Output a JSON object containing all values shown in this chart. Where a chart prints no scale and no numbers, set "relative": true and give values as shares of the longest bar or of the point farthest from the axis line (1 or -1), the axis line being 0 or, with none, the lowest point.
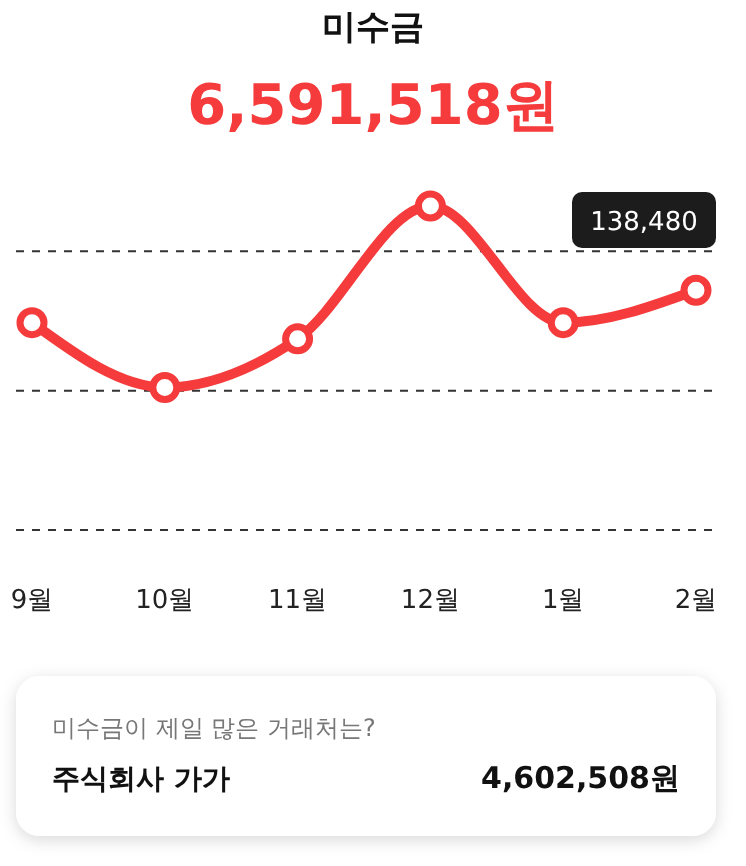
{
  "chart_data": {
    "type": "line",
    "title": "미수금",
    "subtitle": "6,591,518원",
    "categories": [
      "9월",
      "10월",
      "11월",
      "12월",
      "1월",
      "2월"
    ],
    "relative": true,
    "series": [
      {
        "color": "#f53b3b",
        "values": [
          0.64,
          0.44,
          0.59,
          1,
          0.64,
          0.74
        ]
      }
    ],
    "marker": "circle",
    "ref_lines": [
      {
        "axis": "y",
        "value": 0.86,
        "color": "#333333",
        "line_style": "dashed"
      },
      {
        "axis": "y",
        "value": 0.43,
        "color": "#333333",
        "line_style": "dashed"
      },
      {
        "axis": "y",
        "value": 0,
        "color": "#333333",
        "line_style": "dashed"
      }
    ],
    "annotations": [
      "138,480",
      "미수금이 제일 많은 거래처는?",
      "주식회사 가가",
      "4,602,508원"
    ]
  }
}
